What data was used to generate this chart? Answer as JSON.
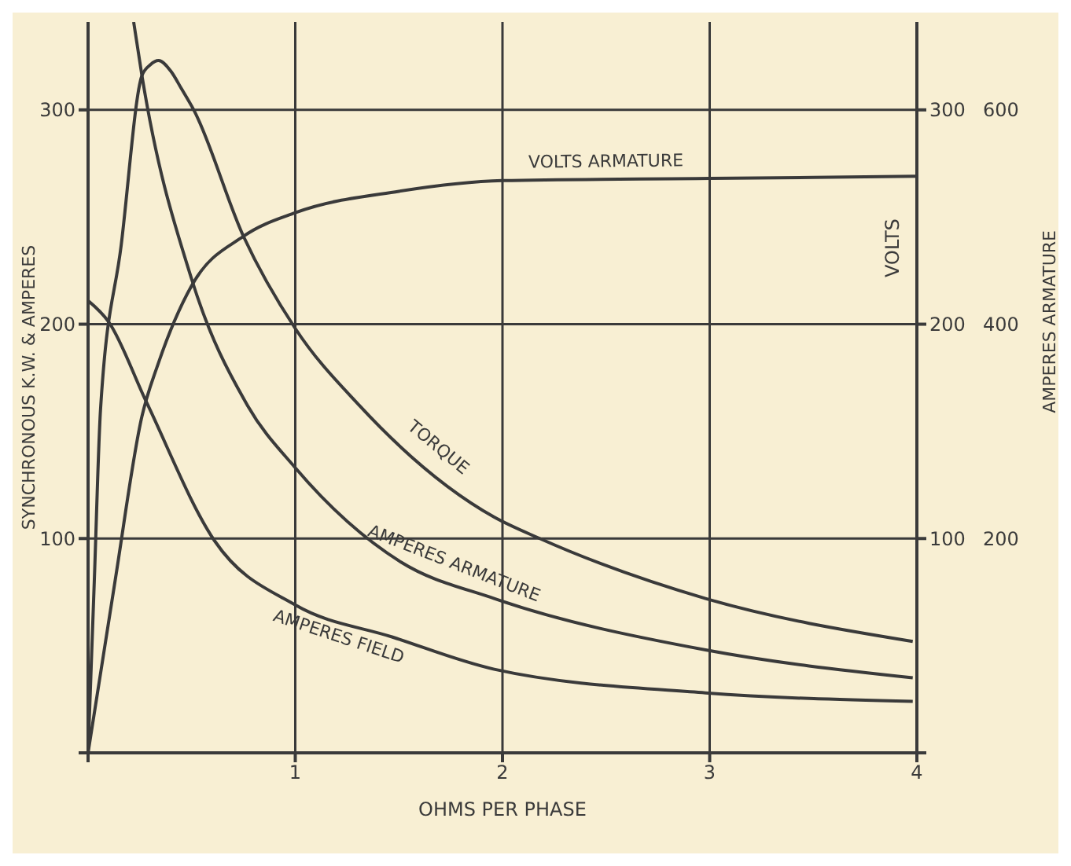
{
  "chart_data": {
    "type": "line",
    "xlabel": "OHMS PER PHASE",
    "ylabel": "SYNCHRONOUS K.W. & AMPERES",
    "y2label": "VOLTS",
    "y3label": "AMPERES ARMATURE",
    "xlim": [
      0,
      4
    ],
    "xticks": [
      {
        "value": 0,
        "label": null
      },
      1,
      2,
      3,
      4
    ],
    "ylim": [
      0,
      341
    ],
    "yticks": [
      {
        "value": 0,
        "label": null
      },
      100,
      200,
      300
    ],
    "y2lim": [
      0,
      341
    ],
    "y2ticks": [
      {
        "value": 0,
        "label": null
      },
      100,
      200,
      300
    ],
    "y3lim": [
      0,
      682
    ],
    "y3ticks": [
      200,
      400,
      600
    ],
    "grid": true,
    "series": [
      {
        "name": "VOLTS ARMATURE",
        "color": "#3a3a3a",
        "axis": "y2",
        "x": [
          0,
          0.13,
          0.26,
          0.34,
          0.5,
          0.75,
          1.0,
          1.5,
          2.0,
          3.0,
          4.0
        ],
        "values": [
          0,
          80,
          157,
          182,
          218,
          241,
          252,
          262,
          267,
          268,
          269
        ]
      },
      {
        "name": "TORQUE",
        "color": "#3a3a3a",
        "x": [
          0,
          0.03,
          0.06,
          0.16,
          0.26,
          0.3,
          0.34,
          0.4,
          0.45,
          0.51,
          0.75,
          1.0,
          1.31,
          1.96,
          2.18,
          2.98,
          3.98
        ],
        "values": [
          0,
          80,
          160,
          237,
          316,
          321,
          323,
          318,
          310,
          300,
          241,
          198,
          162,
          110,
          100,
          72,
          52
        ]
      },
      {
        "name": "AMPERES ARMATURE",
        "color": "#3a3a3a",
        "axis": "y3",
        "x": [
          0.22,
          0.26,
          0.5,
          0.77,
          1.0,
          1.51,
          1.96,
          2.98,
          3.98
        ],
        "values": [
          682,
          632,
          442,
          324,
          266,
          178,
          144,
          96,
          70
        ]
      },
      {
        "name": "AMPERES FIELD",
        "color": "#3a3a3a",
        "x": [
          0,
          0.1,
          0.28,
          0.61,
          1.0,
          1.47,
          1.96,
          2.98,
          3.98
        ],
        "values": [
          211,
          201,
          164,
          99,
          69,
          54,
          39,
          28,
          24
        ]
      }
    ]
  }
}
